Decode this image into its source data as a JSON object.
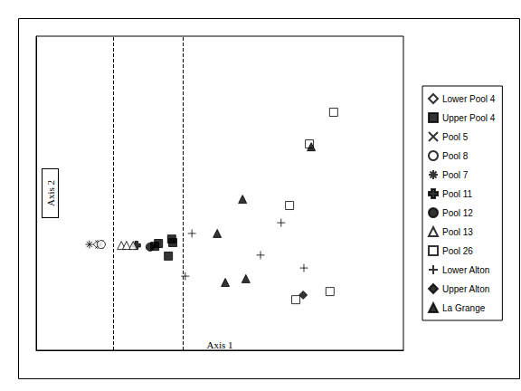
{
  "chart_data": {
    "type": "scatter",
    "x_label": "Axis 1",
    "y_label": "Axis 2",
    "xlim": [
      0,
      100
    ],
    "ylim": [
      0,
      100
    ],
    "tick_labels": false,
    "grid": false,
    "legend": "right",
    "vlines": [
      21,
      40
    ],
    "series": [
      {
        "name": "Lower Pool 4",
        "marker": "diamond-open",
        "color": "#000000",
        "x": [
          16.7
        ],
        "values": [
          33.7
        ]
      },
      {
        "name": "Upper Pool 4",
        "marker": "square",
        "color": "#000000",
        "x": [
          32.3,
          33.3,
          36.9,
          37.2,
          36.0
        ],
        "values": [
          33.1,
          34.0,
          35.4,
          34.3,
          30.0
        ]
      },
      {
        "name": "Pool 5",
        "marker": "x",
        "color": "#000000",
        "x": [
          17.2
        ],
        "values": [
          33.7
        ]
      },
      {
        "name": "Pool 8",
        "marker": "circle-open",
        "color": "#000000",
        "x": [
          17.7
        ],
        "values": [
          33.7
        ]
      },
      {
        "name": "Pool 7",
        "marker": "star",
        "color": "#000000",
        "x": [
          14.5
        ],
        "values": [
          33.7
        ]
      },
      {
        "name": "Pool 11",
        "marker": "plus-bold",
        "color": "#000000",
        "x": [
          27.3
        ],
        "values": [
          33.4
        ]
      },
      {
        "name": "Pool 12",
        "marker": "circle",
        "color": "#000000",
        "x": [
          31.0
        ],
        "values": [
          32.9
        ]
      },
      {
        "name": "Pool 13",
        "marker": "triangle-open",
        "color": "#000000",
        "x": [
          23.2,
          24.6,
          26.4
        ],
        "values": [
          33.4,
          33.4,
          33.4
        ]
      },
      {
        "name": "Pool 26",
        "marker": "square-open",
        "color": "#000000",
        "x": [
          81.0,
          74.4,
          69.0,
          80.0,
          70.7
        ],
        "values": [
          75.8,
          65.7,
          46.1,
          18.7,
          16.1
        ]
      },
      {
        "name": "Lower Alton",
        "marker": "plus",
        "color": "#000000",
        "x": [
          42.4,
          40.6,
          61.1,
          66.7,
          72.9
        ],
        "values": [
          37.2,
          23.6,
          30.3,
          40.6,
          26.2
        ]
      },
      {
        "name": "Upper Alton",
        "marker": "diamond",
        "color": "#000000",
        "x": [
          72.7
        ],
        "values": [
          17.6
        ]
      },
      {
        "name": "La Grange",
        "marker": "triangle",
        "color": "#000000",
        "x": [
          56.2,
          49.3,
          51.5,
          57.1,
          74.9
        ],
        "values": [
          48.1,
          37.2,
          21.6,
          22.8,
          64.8
        ]
      }
    ]
  }
}
